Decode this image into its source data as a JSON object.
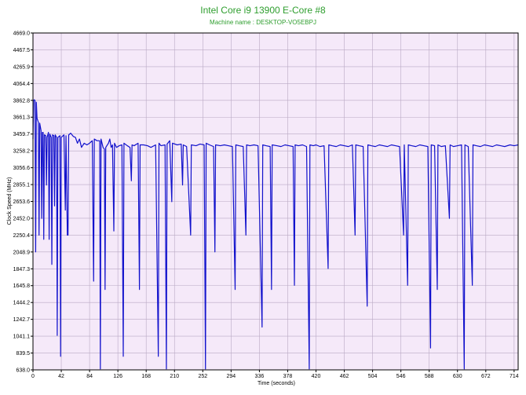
{
  "colors": {
    "plot_bg": "#f5e9f9",
    "grid": "#b9a9c4",
    "line": "#1111cc",
    "title": "#2e9e2e",
    "axis": "#000000"
  },
  "chart_data": {
    "type": "line",
    "title": "Intel Core i9 13900 E-Core #8",
    "subtitle": "Machine name : DESKTOP-VO5EBPJ",
    "xlabel": "Time (seconds)",
    "ylabel": "Clock Speed (MHz)",
    "xlim": [
      0,
      720
    ],
    "ylim": [
      638.0,
      4669.0
    ],
    "xticks": [
      "0",
      "42",
      "84",
      "126",
      "168",
      "210",
      "252",
      "294",
      "336",
      "378",
      "420",
      "462",
      "504",
      "546",
      "588",
      "630",
      "672",
      "714"
    ],
    "yticks": [
      "638.0",
      "839.5",
      "1041.1",
      "1242.7",
      "1444.2",
      "1645.8",
      "1847.3",
      "2048.9",
      "2250.4",
      "2452.0",
      "2653.6",
      "2855.1",
      "3056.6",
      "3258.2",
      "3459.7",
      "3661.3",
      "3862.8",
      "4064.4",
      "4265.9",
      "4467.5",
      "4669.0"
    ],
    "grid": true,
    "legend": "none",
    "baseline": 3350,
    "series": [
      {
        "points": [
          [
            0,
            3400
          ],
          [
            1,
            3862
          ],
          [
            2,
            3870
          ],
          [
            3,
            3860
          ],
          [
            4,
            2050
          ],
          [
            5,
            3840
          ],
          [
            6,
            3650
          ],
          [
            8,
            3600
          ],
          [
            9,
            2250
          ],
          [
            10,
            3590
          ],
          [
            12,
            3500
          ],
          [
            13,
            2450
          ],
          [
            14,
            3480
          ],
          [
            15,
            3480
          ],
          [
            16,
            2200
          ],
          [
            17,
            3450
          ],
          [
            19,
            3440
          ],
          [
            20,
            2850
          ],
          [
            21,
            3420
          ],
          [
            23,
            3480
          ],
          [
            24,
            2200
          ],
          [
            25,
            3460
          ],
          [
            27,
            3420
          ],
          [
            28,
            1900
          ],
          [
            29,
            3450
          ],
          [
            31,
            3440
          ],
          [
            32,
            2600
          ],
          [
            33,
            3450
          ],
          [
            35,
            3420
          ],
          [
            36,
            1050
          ],
          [
            37,
            3420
          ],
          [
            40,
            3440
          ],
          [
            41,
            800
          ],
          [
            42,
            3420
          ],
          [
            46,
            3450
          ],
          [
            48,
            2550
          ],
          [
            49,
            3440
          ],
          [
            51,
            2250
          ],
          [
            52,
            2250
          ],
          [
            53,
            3450
          ],
          [
            56,
            3470
          ],
          [
            60,
            3430
          ],
          [
            63,
            3420
          ],
          [
            66,
            3350
          ],
          [
            69,
            3400
          ],
          [
            72,
            3300
          ],
          [
            76,
            3350
          ],
          [
            80,
            3330
          ],
          [
            84,
            3350
          ],
          [
            88,
            3380
          ],
          [
            90,
            1700
          ],
          [
            91,
            3400
          ],
          [
            95,
            3380
          ],
          [
            99,
            3380
          ],
          [
            100,
            650
          ],
          [
            101,
            3400
          ],
          [
            104,
            3300
          ],
          [
            106,
            3280
          ],
          [
            107,
            1600
          ],
          [
            108,
            3300
          ],
          [
            112,
            3350
          ],
          [
            114,
            3400
          ],
          [
            116,
            3300
          ],
          [
            118,
            3330
          ],
          [
            120,
            2300
          ],
          [
            121,
            3350
          ],
          [
            124,
            3300
          ],
          [
            128,
            3320
          ],
          [
            132,
            3330
          ],
          [
            134,
            800
          ],
          [
            135,
            3350
          ],
          [
            140,
            3320
          ],
          [
            144,
            3300
          ],
          [
            146,
            2900
          ],
          [
            147,
            3330
          ],
          [
            150,
            3320
          ],
          [
            156,
            3350
          ],
          [
            158,
            1600
          ],
          [
            159,
            3330
          ],
          [
            164,
            3330
          ],
          [
            170,
            3320
          ],
          [
            175,
            3300
          ],
          [
            182,
            3330
          ],
          [
            186,
            800
          ],
          [
            187,
            3350
          ],
          [
            190,
            3320
          ],
          [
            196,
            3330
          ],
          [
            198,
            650
          ],
          [
            199,
            3340
          ],
          [
            203,
            3380
          ],
          [
            206,
            2650
          ],
          [
            207,
            3350
          ],
          [
            214,
            3330
          ],
          [
            220,
            3340
          ],
          [
            222,
            2850
          ],
          [
            223,
            3330
          ],
          [
            228,
            3310
          ],
          [
            234,
            2250
          ],
          [
            235,
            3330
          ],
          [
            242,
            3320
          ],
          [
            248,
            3340
          ],
          [
            254,
            3330
          ],
          [
            256,
            650
          ],
          [
            257,
            3350
          ],
          [
            262,
            3330
          ],
          [
            268,
            3310
          ],
          [
            270,
            2050
          ],
          [
            271,
            3330
          ],
          [
            278,
            3320
          ],
          [
            284,
            3330
          ],
          [
            290,
            3320
          ],
          [
            296,
            3310
          ],
          [
            300,
            1600
          ],
          [
            301,
            3330
          ],
          [
            306,
            3320
          ],
          [
            312,
            3310
          ],
          [
            316,
            2250
          ],
          [
            317,
            3330
          ],
          [
            322,
            3320
          ],
          [
            328,
            3330
          ],
          [
            334,
            3320
          ],
          [
            340,
            1150
          ],
          [
            341,
            3330
          ],
          [
            346,
            3320
          ],
          [
            352,
            3310
          ],
          [
            354,
            1600
          ],
          [
            355,
            3330
          ],
          [
            362,
            3320
          ],
          [
            368,
            3310
          ],
          [
            374,
            3330
          ],
          [
            380,
            3320
          ],
          [
            386,
            3310
          ],
          [
            388,
            1650
          ],
          [
            389,
            3330
          ],
          [
            394,
            3320
          ],
          [
            400,
            3330
          ],
          [
            406,
            3310
          ],
          [
            410,
            650
          ],
          [
            411,
            3330
          ],
          [
            416,
            3320
          ],
          [
            420,
            3330
          ],
          [
            426,
            3310
          ],
          [
            432,
            3320
          ],
          [
            438,
            1850
          ],
          [
            439,
            3330
          ],
          [
            444,
            3320
          ],
          [
            450,
            3310
          ],
          [
            456,
            3330
          ],
          [
            462,
            3320
          ],
          [
            468,
            3310
          ],
          [
            474,
            3330
          ],
          [
            478,
            2250
          ],
          [
            479,
            3330
          ],
          [
            484,
            3320
          ],
          [
            490,
            3310
          ],
          [
            496,
            1400
          ],
          [
            497,
            3330
          ],
          [
            502,
            3320
          ],
          [
            508,
            3310
          ],
          [
            514,
            3330
          ],
          [
            520,
            3320
          ],
          [
            526,
            3310
          ],
          [
            532,
            3330
          ],
          [
            538,
            3320
          ],
          [
            544,
            3310
          ],
          [
            550,
            2250
          ],
          [
            551,
            3330
          ],
          [
            556,
            1650
          ],
          [
            557,
            3330
          ],
          [
            562,
            3320
          ],
          [
            568,
            3310
          ],
          [
            574,
            3330
          ],
          [
            580,
            3320
          ],
          [
            586,
            3310
          ],
          [
            590,
            900
          ],
          [
            591,
            3330
          ],
          [
            596,
            3320
          ],
          [
            600,
            1600
          ],
          [
            601,
            3330
          ],
          [
            606,
            3310
          ],
          [
            612,
            3320
          ],
          [
            618,
            2450
          ],
          [
            619,
            3330
          ],
          [
            624,
            3310
          ],
          [
            630,
            3320
          ],
          [
            636,
            3330
          ],
          [
            640,
            650
          ],
          [
            641,
            3330
          ],
          [
            646,
            3310
          ],
          [
            652,
            1650
          ],
          [
            653,
            3330
          ],
          [
            658,
            3320
          ],
          [
            664,
            3310
          ],
          [
            670,
            3330
          ],
          [
            676,
            3320
          ],
          [
            682,
            3310
          ],
          [
            688,
            3330
          ],
          [
            694,
            3320
          ],
          [
            700,
            3310
          ],
          [
            708,
            3330
          ],
          [
            714,
            3320
          ],
          [
            720,
            3330
          ]
        ]
      }
    ]
  }
}
